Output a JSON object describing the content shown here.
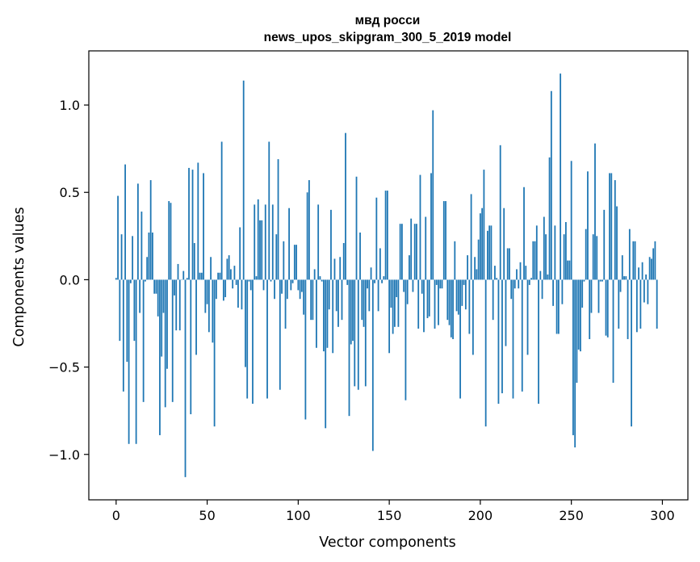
{
  "chart_data": {
    "type": "bar",
    "title_line1": "мвд росси",
    "title_line2": "news_upos_skipgram_300_5_2019 model",
    "xlabel": "Vector components",
    "ylabel": "Components values",
    "xlim": [
      -15,
      314
    ],
    "ylim": [
      -1.26,
      1.31
    ],
    "x_ticks": [
      0,
      50,
      100,
      150,
      200,
      250,
      300
    ],
    "x_tick_labels": [
      "0",
      "50",
      "100",
      "150",
      "200",
      "250",
      "300"
    ],
    "y_ticks": [
      -1.0,
      -0.5,
      0.0,
      0.5,
      1.0
    ],
    "y_tick_labels": [
      "−1.0",
      "−0.5",
      "0.0",
      "0.5",
      "1.0"
    ],
    "bar_color": "#1f77b4",
    "values": [
      0.01,
      0.48,
      -0.35,
      0.26,
      -0.64,
      0.66,
      -0.47,
      -0.94,
      -0.02,
      0.25,
      -0.35,
      -0.94,
      0.55,
      -0.19,
      0.39,
      -0.7,
      -0.01,
      0.13,
      0.27,
      0.57,
      0.27,
      -0.08,
      -0.08,
      -0.21,
      -0.89,
      -0.44,
      -0.19,
      -0.73,
      -0.51,
      0.45,
      0.44,
      -0.7,
      -0.09,
      -0.29,
      0.09,
      -0.29,
      0.0,
      0.05,
      -1.13,
      0.01,
      0.64,
      -0.77,
      0.63,
      0.21,
      -0.43,
      0.67,
      0.04,
      0.04,
      0.61,
      -0.19,
      -0.14,
      -0.3,
      0.13,
      -0.36,
      -0.84,
      -0.11,
      0.04,
      0.04,
      0.79,
      -0.12,
      -0.1,
      0.12,
      0.14,
      0.06,
      -0.05,
      0.08,
      -0.03,
      -0.16,
      0.3,
      -0.17,
      1.14,
      -0.5,
      -0.68,
      -0.01,
      -0.06,
      -0.71,
      0.43,
      0.02,
      0.46,
      0.34,
      0.34,
      -0.06,
      0.43,
      -0.68,
      0.79,
      -0.01,
      0.43,
      -0.11,
      0.26,
      0.69,
      -0.63,
      -0.08,
      0.22,
      -0.28,
      -0.11,
      0.41,
      -0.06,
      -0.02,
      0.2,
      0.2,
      -0.06,
      -0.11,
      -0.07,
      -0.2,
      -0.8,
      0.5,
      0.57,
      -0.23,
      -0.23,
      0.06,
      -0.39,
      0.43,
      0.02,
      -0.01,
      -0.41,
      -0.85,
      -0.39,
      -0.17,
      0.4,
      -0.42,
      0.12,
      -0.18,
      -0.27,
      0.13,
      -0.23,
      0.21,
      0.84,
      -0.03,
      -0.78,
      -0.37,
      -0.35,
      -0.61,
      0.59,
      -0.63,
      0.27,
      -0.23,
      -0.27,
      -0.61,
      -0.05,
      -0.18,
      0.07,
      -0.98,
      -0.02,
      0.47,
      -0.18,
      0.18,
      -0.02,
      0.02,
      0.51,
      0.51,
      -0.42,
      -0.16,
      -0.31,
      -0.27,
      -0.1,
      -0.27,
      0.32,
      0.32,
      -0.07,
      -0.69,
      -0.14,
      0.14,
      0.35,
      -0.07,
      0.32,
      0.32,
      -0.28,
      0.6,
      -0.08,
      -0.3,
      0.36,
      -0.22,
      -0.21,
      0.61,
      0.97,
      -0.28,
      -0.03,
      -0.26,
      -0.05,
      -0.05,
      0.45,
      0.45,
      -0.23,
      -0.26,
      -0.33,
      -0.34,
      0.22,
      -0.18,
      -0.2,
      -0.68,
      -0.15,
      -0.03,
      -0.17,
      0.14,
      -0.31,
      0.49,
      -0.43,
      0.13,
      0.06,
      0.23,
      0.38,
      0.41,
      0.63,
      -0.84,
      0.28,
      0.31,
      0.31,
      -0.23,
      0.08,
      0.01,
      -0.71,
      0.77,
      -0.65,
      0.41,
      -0.38,
      0.18,
      0.18,
      -0.11,
      -0.68,
      -0.05,
      0.06,
      -0.05,
      0.1,
      -0.64,
      0.53,
      0.08,
      -0.43,
      -0.03,
      0.01,
      0.22,
      0.22,
      0.31,
      -0.71,
      0.05,
      -0.11,
      0.36,
      0.26,
      0.03,
      0.7,
      1.08,
      -0.15,
      0.31,
      -0.31,
      -0.31,
      1.18,
      -0.14,
      0.26,
      0.33,
      0.11,
      0.11,
      0.68,
      -0.89,
      -0.96,
      -0.59,
      -0.4,
      -0.41,
      -0.16,
      -0.01,
      0.29,
      0.62,
      -0.34,
      -0.19,
      0.26,
      0.78,
      0.25,
      -0.19,
      -0.01,
      -0.01,
      0.4,
      -0.32,
      -0.33,
      0.61,
      0.61,
      -0.59,
      0.57,
      0.42,
      -0.28,
      -0.07,
      0.14,
      0.02,
      0.02,
      -0.34,
      0.29,
      -0.84,
      0.22,
      0.22,
      -0.3,
      0.07,
      -0.28,
      0.1,
      -0.13,
      0.03,
      -0.14,
      0.13,
      0.12,
      0.18,
      0.22,
      -0.28
    ]
  }
}
